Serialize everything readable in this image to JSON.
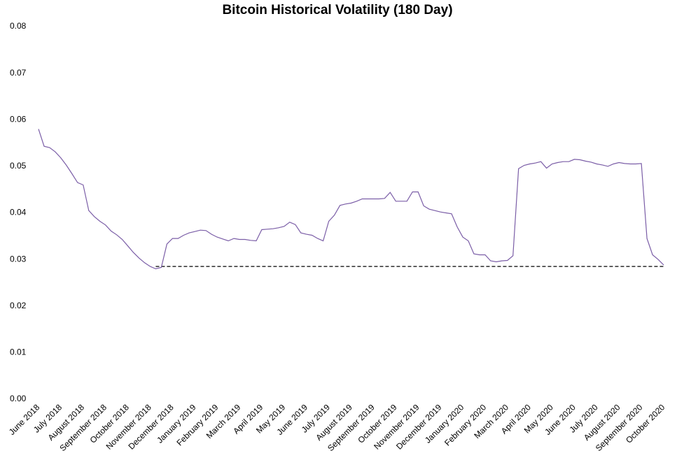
{
  "chart_data": {
    "type": "line",
    "title": "Bitcoin Historical Volatility (180 Day)",
    "categories": [
      "June 2018",
      null,
      null,
      null,
      "July 2018",
      null,
      null,
      null,
      "August 2018",
      null,
      null,
      null,
      "September 2018",
      null,
      null,
      null,
      "October 2018",
      null,
      null,
      null,
      "November 2018",
      null,
      null,
      null,
      "December 2018",
      null,
      null,
      null,
      "January 2019",
      null,
      null,
      null,
      "February 2019",
      null,
      null,
      null,
      "March 2019",
      null,
      null,
      null,
      "April 2019",
      null,
      null,
      null,
      "May 2019",
      null,
      null,
      null,
      "June 2019",
      null,
      null,
      null,
      "July 2019",
      null,
      null,
      null,
      "August 2019",
      null,
      null,
      null,
      "September 2019",
      null,
      null,
      null,
      "October 2019",
      null,
      null,
      null,
      "November 2019",
      null,
      null,
      null,
      "December 2019",
      null,
      null,
      null,
      "January 2020",
      null,
      null,
      null,
      "February 2020",
      null,
      null,
      null,
      "March 2020",
      null,
      null,
      null,
      "April 2020",
      null,
      null,
      null,
      "May 2020",
      null,
      null,
      null,
      "June 2020",
      null,
      null,
      null,
      "July 2020",
      null,
      null,
      null,
      "August 2020",
      null,
      null,
      null,
      "September 2020",
      null,
      null,
      null,
      "October 2020"
    ],
    "values": [
      0.058,
      0.0543,
      0.054,
      0.0531,
      0.0518,
      0.0502,
      0.0484,
      0.0465,
      0.046,
      0.0405,
      0.0392,
      0.0382,
      0.0374,
      0.0361,
      0.0353,
      0.0343,
      0.0329,
      0.0315,
      0.0303,
      0.0293,
      0.0285,
      0.028,
      0.0283,
      0.0333,
      0.0345,
      0.0345,
      0.0352,
      0.0357,
      0.036,
      0.0363,
      0.0362,
      0.0354,
      0.0348,
      0.0344,
      0.034,
      0.0345,
      0.0343,
      0.0343,
      0.0341,
      0.034,
      0.0364,
      0.0365,
      0.0366,
      0.0368,
      0.0371,
      0.038,
      0.0375,
      0.0357,
      0.0354,
      0.0352,
      0.0345,
      0.034,
      0.0382,
      0.0395,
      0.0416,
      0.0419,
      0.0421,
      0.0425,
      0.043,
      0.043,
      0.043,
      0.043,
      0.0431,
      0.0444,
      0.0425,
      0.0425,
      0.0425,
      0.0445,
      0.0445,
      0.0415,
      0.0408,
      0.0405,
      0.0402,
      0.04,
      0.0398,
      0.037,
      0.0348,
      0.034,
      0.0312,
      0.031,
      0.031,
      0.0297,
      0.0295,
      0.0297,
      0.0298,
      0.0308,
      0.0495,
      0.0502,
      0.0505,
      0.0507,
      0.051,
      0.0496,
      0.0505,
      0.0508,
      0.051,
      0.051,
      0.0515,
      0.0514,
      0.0511,
      0.0509,
      0.0505,
      0.0503,
      0.05,
      0.0505,
      0.0508,
      0.0506,
      0.0505,
      0.0505,
      0.0506,
      0.0345,
      0.031,
      0.03,
      0.0288
    ],
    "color": "#7b5ea7",
    "reference_line": 0.0285,
    "ylim": [
      0,
      0.08
    ],
    "yticks": [
      {
        "value": 0,
        "label": "0.00"
      },
      0.01,
      0.02,
      0.03,
      0.04,
      0.05,
      0.06,
      0.07,
      0.08
    ],
    "grid": false
  }
}
